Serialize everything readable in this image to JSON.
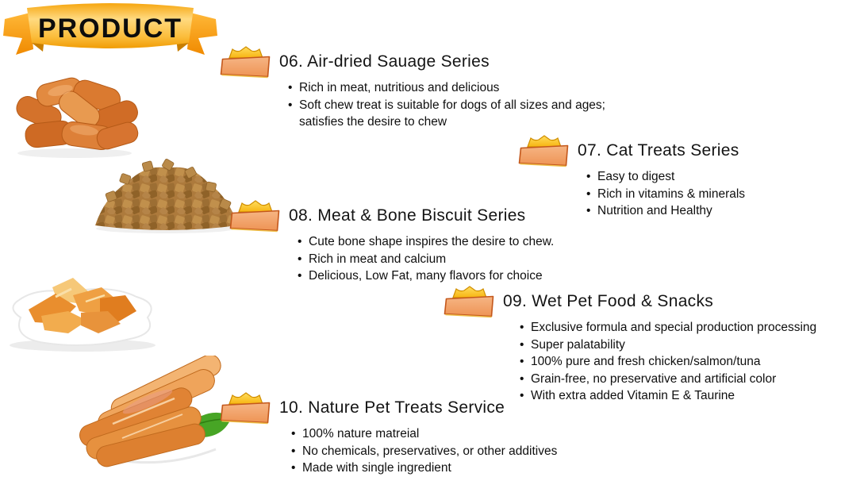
{
  "page": {
    "banner_title": "PRODUCT"
  },
  "colors": {
    "background": "#FFFFFF",
    "text": "#111111",
    "ribbon_gold": "#F9B517",
    "ribbon_fold": "#C87E00",
    "icon_crown": "#FFD04A",
    "icon_bowl_fill": "#F3A770",
    "icon_bowl_border": "#C4581C"
  },
  "icons": {
    "section_marker": "crown-bowl-icon"
  },
  "images": [
    {
      "name": "air-dried-sausages-photo"
    },
    {
      "name": "meat-bone-biscuits-photo"
    },
    {
      "name": "dried-chicken-chips-photo"
    },
    {
      "name": "chicken-jerky-plate-photo"
    }
  ],
  "sections": [
    {
      "id": "06",
      "title": "06. Air-dried Sauage Series",
      "bullets": [
        "Rich in meat, nutritious and delicious",
        "Soft chew treat is suitable for dogs of all sizes and ages; satisfies the desire to chew"
      ]
    },
    {
      "id": "07",
      "title": "07. Cat Treats Series",
      "bullets": [
        "Easy to digest",
        "Rich in vitamins & minerals",
        "Nutrition and Healthy"
      ]
    },
    {
      "id": "08",
      "title": "08. Meat & Bone Biscuit Series",
      "bullets": [
        "Cute bone shape inspires the desire to chew.",
        "Rich in meat and calcium",
        "Delicious, Low Fat, many flavors for choice"
      ]
    },
    {
      "id": "09",
      "title": "09. Wet Pet Food & Snacks",
      "bullets": [
        "Exclusive formula and special production processing",
        "Super palatability",
        "100% pure and fresh chicken/salmon/tuna",
        "Grain-free, no preservative and artificial color",
        "With extra added Vitamin E & Taurine"
      ]
    },
    {
      "id": "10",
      "title": "10. Nature Pet Treats Service",
      "bullets": [
        "100% nature matreial",
        "No chemicals, preservatives, or other additives",
        "Made with single ingredient"
      ]
    }
  ]
}
